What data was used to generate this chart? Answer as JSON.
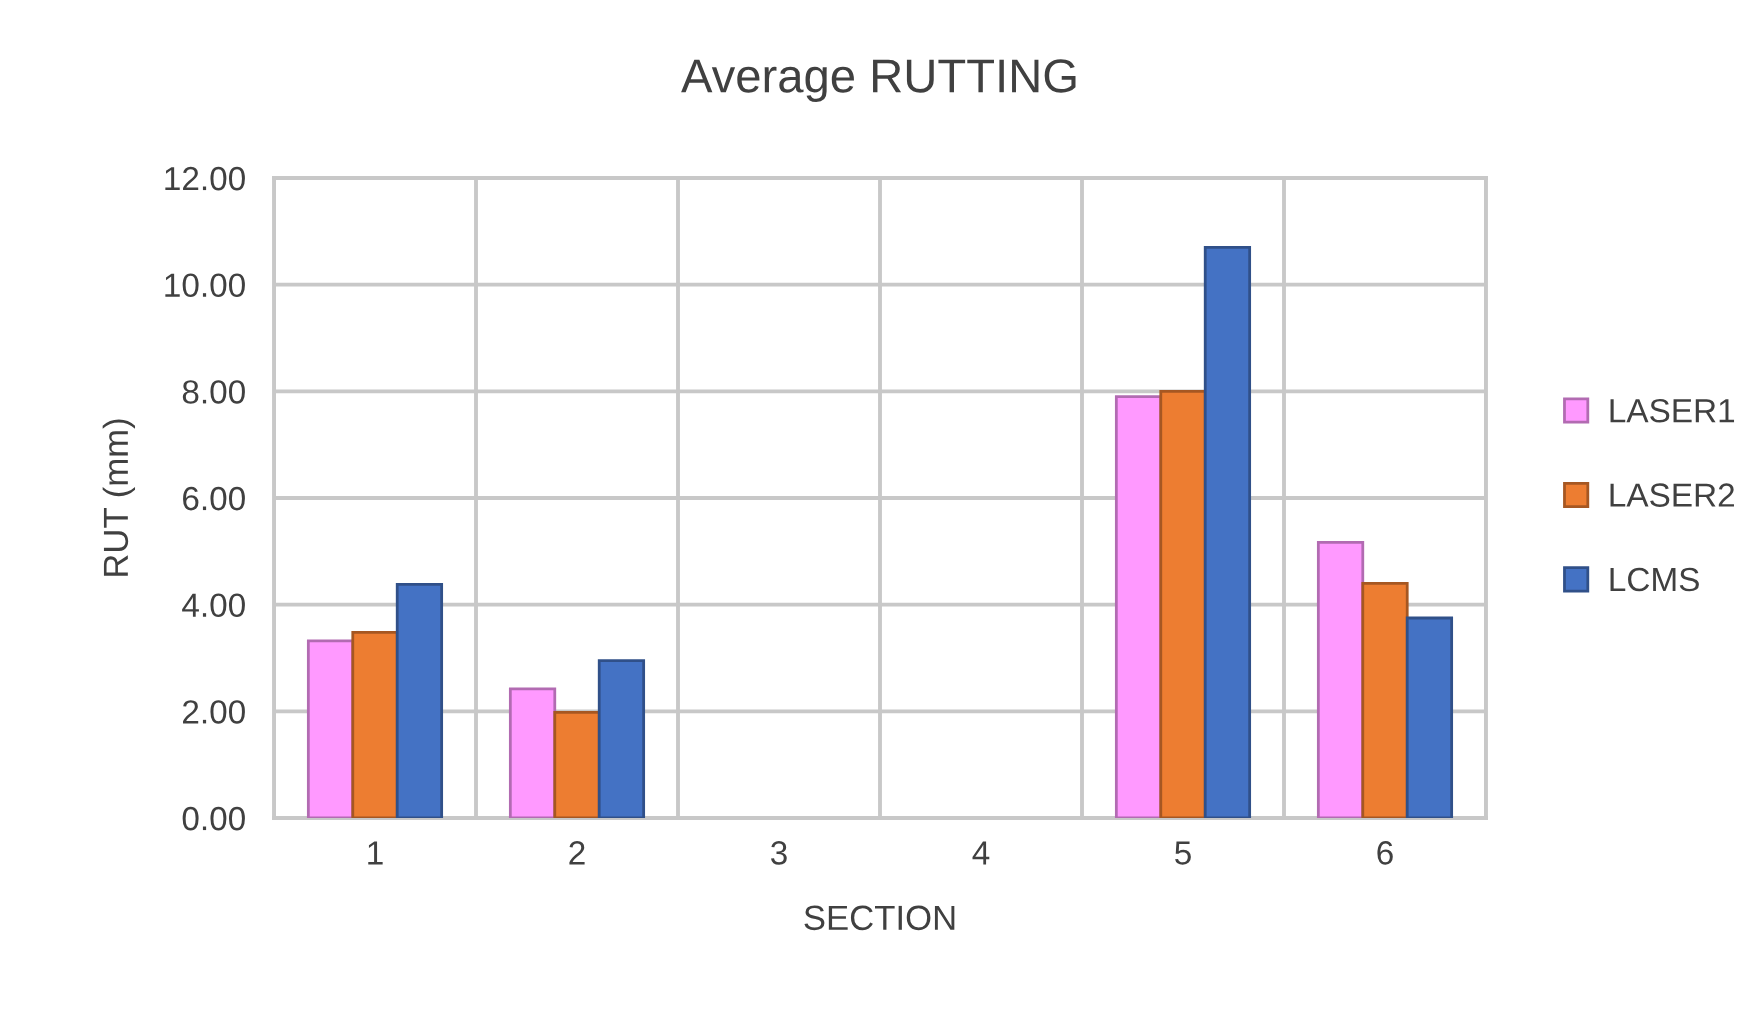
{
  "chart_data": {
    "type": "bar",
    "title": "Average RUTTING",
    "xlabel": "SECTION",
    "ylabel": "RUT (mm)",
    "categories": [
      "1",
      "2",
      "3",
      "4",
      "5",
      "6"
    ],
    "series": [
      {
        "name": "LASER1",
        "color": "#ff99ff",
        "values": [
          3.32,
          2.42,
          null,
          null,
          7.9,
          5.17
        ]
      },
      {
        "name": "LASER2",
        "color": "#ed7d31",
        "values": [
          3.48,
          1.98,
          null,
          null,
          8.0,
          4.4
        ]
      },
      {
        "name": "LCMS",
        "color": "#4472c4",
        "values": [
          4.38,
          2.95,
          null,
          null,
          10.7,
          3.75
        ]
      }
    ],
    "ylim": [
      0,
      12
    ],
    "yticks": [
      {
        "value": 0,
        "label": "0.00"
      },
      {
        "value": 2,
        "label": "2.00"
      },
      {
        "value": 4,
        "label": "4.00"
      },
      {
        "value": 6,
        "label": "6.00"
      },
      {
        "value": 8,
        "label": "8.00"
      },
      {
        "value": 10,
        "label": "10.00"
      },
      {
        "value": 12,
        "label": "12.00"
      }
    ],
    "grid": true,
    "legend": "right"
  }
}
